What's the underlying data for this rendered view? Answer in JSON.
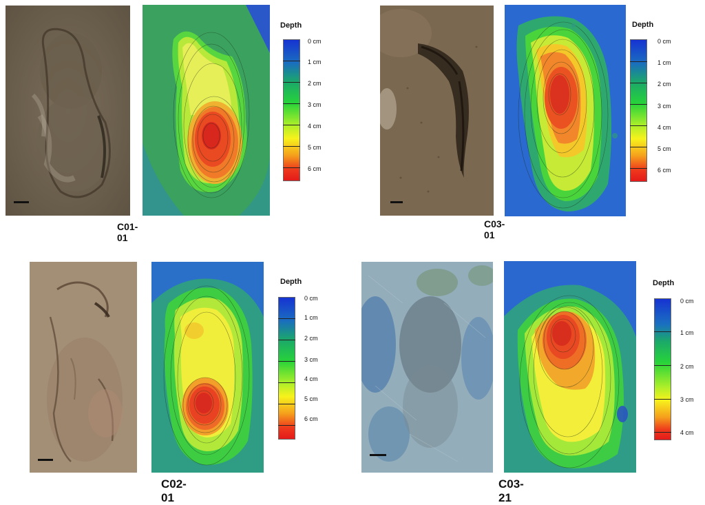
{
  "panels": [
    {
      "id": "C01-01",
      "caption": "C01-01",
      "legend_title": "Depth",
      "legend_ticks": [
        "0 cm",
        "1 cm",
        "2 cm",
        "3 cm",
        "4 cm",
        "5 cm",
        "6 cm"
      ],
      "photo_style": "brown-soil"
    },
    {
      "id": "C03-01",
      "caption": "C03-01",
      "legend_title": "Depth",
      "legend_ticks": [
        "0 cm",
        "1 cm",
        "2 cm",
        "3 cm",
        "4 cm",
        "5 cm",
        "6 cm"
      ],
      "photo_style": "brown-soil"
    },
    {
      "id": "C02-01",
      "caption": "C02-01",
      "legend_title": "Depth",
      "legend_ticks": [
        "0 cm",
        "1 cm",
        "2 cm",
        "3 cm",
        "4 cm",
        "5 cm",
        "6 cm"
      ],
      "photo_style": "tan-soil"
    },
    {
      "id": "C03-21",
      "caption": "C03-21",
      "legend_title": "Depth",
      "legend_ticks": [
        "0 cm",
        "1 cm",
        "2 cm",
        "3 cm",
        "4 cm"
      ],
      "photo_style": "blue-grey-soil"
    }
  ]
}
